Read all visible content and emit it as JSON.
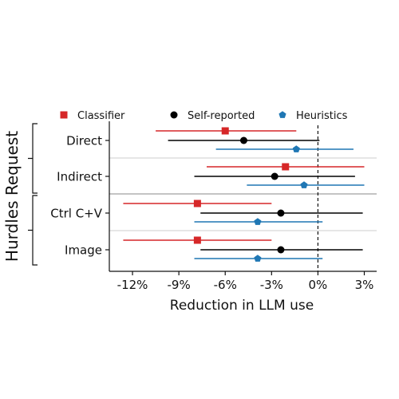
{
  "chart_data": {
    "type": "scatter",
    "title": "",
    "xlabel": "Reduction in LLM use",
    "ylabel": "Hurdles Request",
    "xlim": [
      -13.5,
      3.8
    ],
    "x_ticks": [
      {
        "value": -12,
        "label": "-12%"
      },
      {
        "value": -9,
        "label": "-9%"
      },
      {
        "value": -6,
        "label": "-6%"
      },
      {
        "value": -3,
        "label": "-3%"
      },
      {
        "value": 0,
        "label": "0%"
      },
      {
        "value": 3,
        "label": "3%"
      }
    ],
    "reference_line_x": 0,
    "legend_position": "top",
    "categories": [
      "Direct",
      "Indirect",
      "Ctrl C+V",
      "Image"
    ],
    "category_groups": [
      {
        "members": [
          "Direct",
          "Indirect"
        ]
      },
      {
        "members": [
          "Ctrl C+V",
          "Image"
        ]
      }
    ],
    "series": [
      {
        "name": "Classifier",
        "color": "#d62728",
        "marker": "square",
        "points": [
          {
            "category": "Direct",
            "estimate": -6.0,
            "low": -10.5,
            "high": -1.4
          },
          {
            "category": "Indirect",
            "estimate": -2.1,
            "low": -7.2,
            "high": 3.0
          },
          {
            "category": "Ctrl C+V",
            "estimate": -7.8,
            "low": -12.6,
            "high": -3.0
          },
          {
            "category": "Image",
            "estimate": -7.8,
            "low": -12.6,
            "high": -3.0
          }
        ]
      },
      {
        "name": "Self-reported",
        "color": "#000000",
        "marker": "circle",
        "points": [
          {
            "category": "Direct",
            "estimate": -4.8,
            "low": -9.7,
            "high": 0.1
          },
          {
            "category": "Indirect",
            "estimate": -2.8,
            "low": -8.0,
            "high": 2.4
          },
          {
            "category": "Ctrl C+V",
            "estimate": -2.4,
            "low": -7.6,
            "high": 2.9
          },
          {
            "category": "Image",
            "estimate": -2.4,
            "low": -7.6,
            "high": 2.9
          }
        ]
      },
      {
        "name": "Heuristics",
        "color": "#1f77b4",
        "marker": "pentagon",
        "points": [
          {
            "category": "Direct",
            "estimate": -1.4,
            "low": -6.6,
            "high": 2.3
          },
          {
            "category": "Indirect",
            "estimate": -0.9,
            "low": -4.6,
            "high": 3.0
          },
          {
            "category": "Ctrl C+V",
            "estimate": -3.9,
            "low": -8.0,
            "high": 0.3
          },
          {
            "category": "Image",
            "estimate": -3.9,
            "low": -8.0,
            "high": 0.3
          }
        ]
      }
    ]
  }
}
